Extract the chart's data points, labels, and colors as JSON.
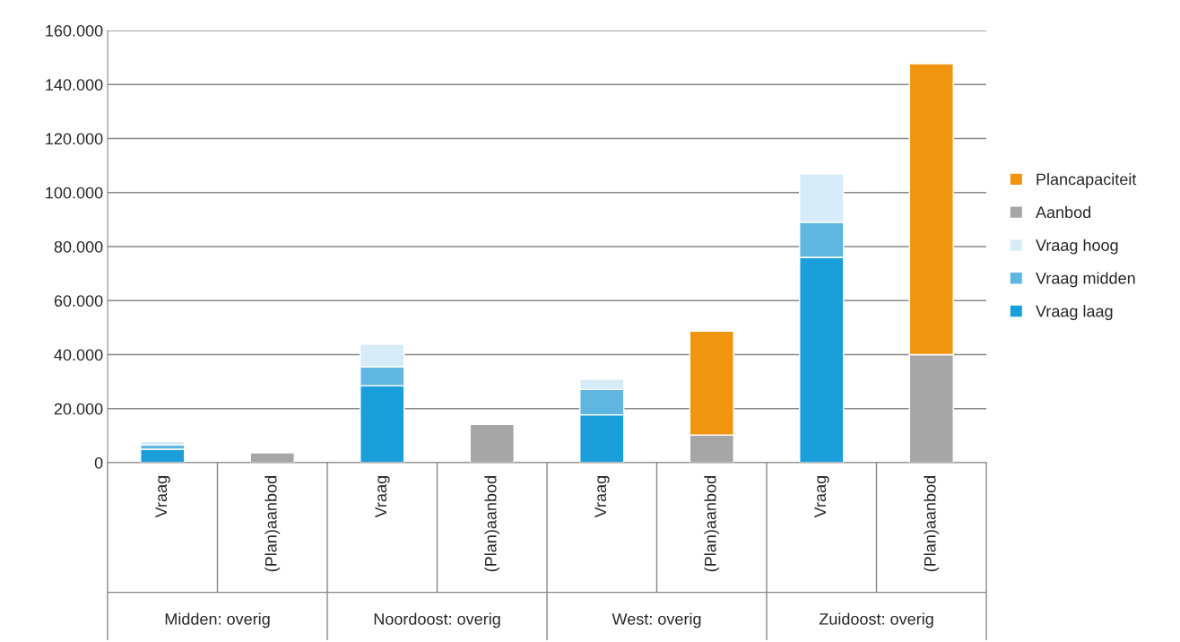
{
  "chart_data": {
    "type": "bar",
    "stacked": true,
    "categories": [
      "Vraag",
      "(Plan)aanbod",
      "Vraag",
      "(Plan)aanbod",
      "Vraag",
      "(Plan)aanbod",
      "Vraag",
      "(Plan)aanbod"
    ],
    "annotations": [
      "Midden: overig",
      "Noordoost: overig",
      "West: overig",
      "Zuidoost: overig"
    ],
    "series": [
      {
        "name": "Vraag laag",
        "color": "#1a9fdb",
        "values": [
          5000,
          null,
          28500,
          null,
          17700,
          null,
          76000,
          null
        ]
      },
      {
        "name": "Vraag midden",
        "color": "#5fb6e0",
        "values": [
          1500,
          null,
          7000,
          null,
          9400,
          null,
          13000,
          null
        ]
      },
      {
        "name": "Vraag hoog",
        "color": "#d6ecf8",
        "values": [
          1500,
          null,
          8500,
          null,
          3900,
          null,
          18000,
          null
        ]
      },
      {
        "name": "Aanbod",
        "color": "#a6a6a6",
        "values": [
          null,
          3700,
          null,
          14200,
          null,
          10200,
          null,
          40000
        ]
      },
      {
        "name": "Plancapaciteit",
        "color": "#f0950f",
        "values": [
          null,
          null,
          null,
          null,
          null,
          38500,
          null,
          107700
        ]
      }
    ],
    "ylim": [
      0,
      160000
    ],
    "yticks": [
      {
        "value": 0,
        "label": "0"
      },
      {
        "value": 20000,
        "label": "20.000"
      },
      {
        "value": 40000,
        "label": "40.000"
      },
      {
        "value": 60000,
        "label": "60.000"
      },
      {
        "value": 80000,
        "label": "80.000"
      },
      {
        "value": 100000,
        "label": "100.000"
      },
      {
        "value": 120000,
        "label": "120.000"
      },
      {
        "value": 140000,
        "label": "140.000"
      },
      {
        "value": 160000,
        "label": "160.000"
      }
    ],
    "grid": "y",
    "legend": "right"
  }
}
